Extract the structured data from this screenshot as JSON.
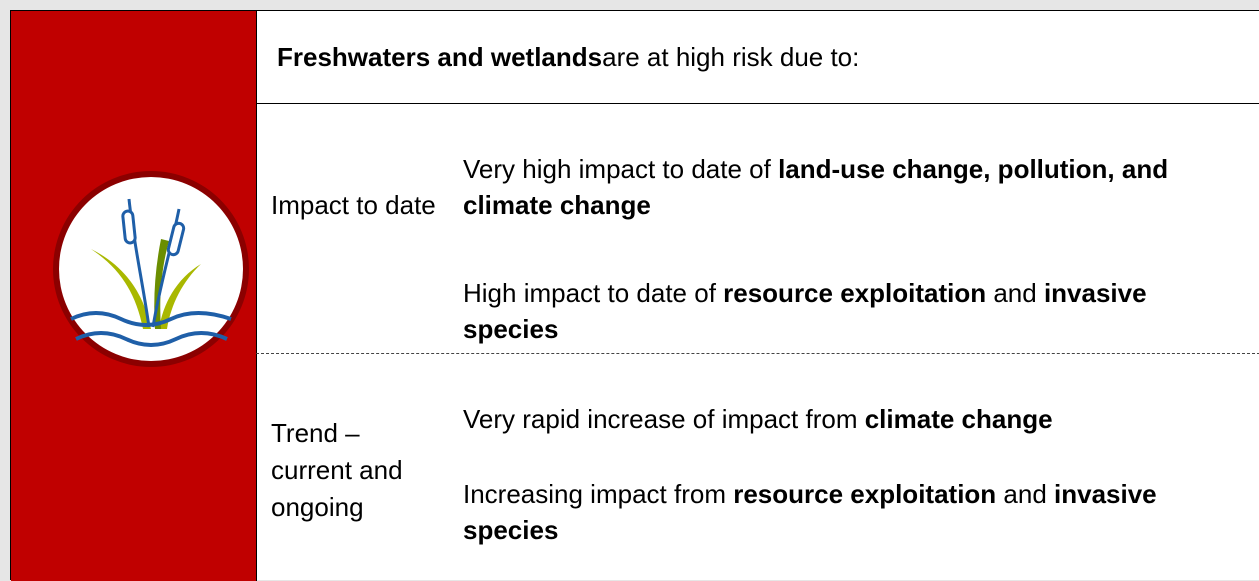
{
  "header": {
    "runs": [
      {
        "text": "Freshwaters and wetlands",
        "bold": true
      },
      {
        "text": " are at high risk due to:"
      }
    ]
  },
  "rows": [
    {
      "label": "Impact to date",
      "items": [
        [
          {
            "text": "Very high impact to date of "
          },
          {
            "text": "land-use change, pollution, and climate change",
            "bold": true
          }
        ],
        [
          {
            "text": "High impact to date of "
          },
          {
            "text": "resource exploitation",
            "bold": true
          },
          {
            "text": " and "
          },
          {
            "text": "invasive species",
            "bold": true
          }
        ]
      ]
    },
    {
      "label": "Trend – current and ongoing",
      "items": [
        [
          {
            "text": "Very rapid increase of impact from "
          },
          {
            "text": "climate change",
            "bold": true
          }
        ],
        [
          {
            "text": "Increasing impact from "
          },
          {
            "text": "resource exploitation",
            "bold": true
          },
          {
            "text": " and "
          },
          {
            "text": "invasive species",
            "bold": true
          }
        ]
      ]
    }
  ]
}
